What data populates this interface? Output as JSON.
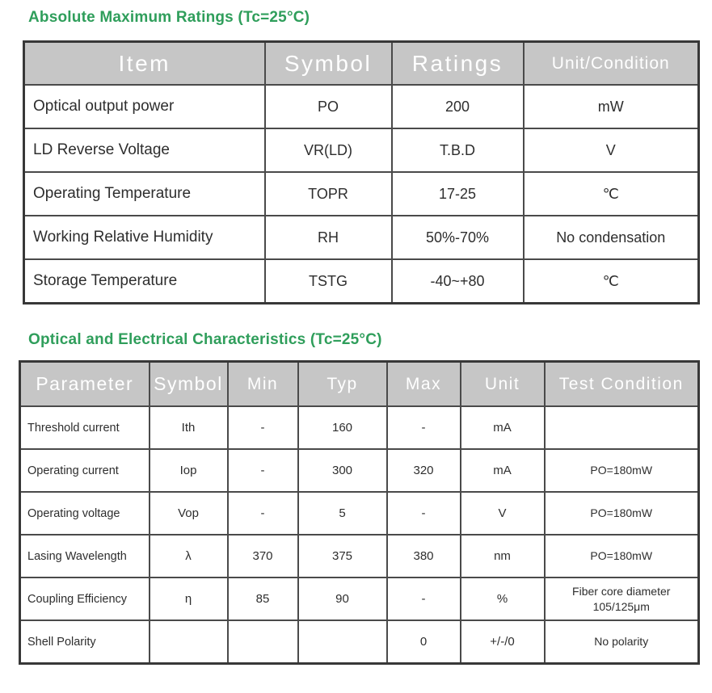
{
  "page": {
    "accent_green": "#2f9e5b",
    "header_bg": "#c6c6c6",
    "header_text_color": "#ffffff",
    "border_color": "#4a4a4a",
    "body_text_color": "#2e2e2e"
  },
  "tables": [
    {
      "title": "Absolute Maximum Ratings (Tc=25°C)",
      "columns": [
        "Item",
        "Symbol",
        "Ratings",
        "Unit/Condition"
      ],
      "rows": [
        [
          "Optical output power",
          "PO",
          "200",
          "mW"
        ],
        [
          "LD Reverse Voltage",
          "VR(LD)",
          "T.B.D",
          "V"
        ],
        [
          "Operating Temperature",
          "TOPR",
          "17-25",
          "℃"
        ],
        [
          "Working Relative Humidity",
          "RH",
          "50%-70%",
          "No condensation"
        ],
        [
          "Storage Temperature",
          "TSTG",
          "-40~+80",
          "℃"
        ]
      ]
    },
    {
      "title": "Optical and Electrical Characteristics (Tc=25°C)",
      "columns": [
        "Parameter",
        "Symbol",
        "Min",
        "Typ",
        "Max",
        "Unit",
        "Test Condition"
      ],
      "rows": [
        [
          "Threshold current",
          "Ith",
          "-",
          "160",
          "-",
          "mA",
          ""
        ],
        [
          "Operating current",
          "Iop",
          "-",
          "300",
          "320",
          "mA",
          "PO=180mW"
        ],
        [
          "Operating voltage",
          "Vop",
          "-",
          "5",
          "-",
          "V",
          "PO=180mW"
        ],
        [
          "Lasing Wavelength",
          "λ",
          "370",
          "375",
          "380",
          "nm",
          "PO=180mW"
        ],
        [
          "Coupling Efficiency",
          "η",
          "85",
          "90",
          "-",
          "%",
          "Fiber core diameter 105/125μm"
        ],
        [
          "Shell Polarity",
          "",
          "",
          "",
          "0",
          "+/-/0",
          "No polarity"
        ]
      ]
    }
  ]
}
